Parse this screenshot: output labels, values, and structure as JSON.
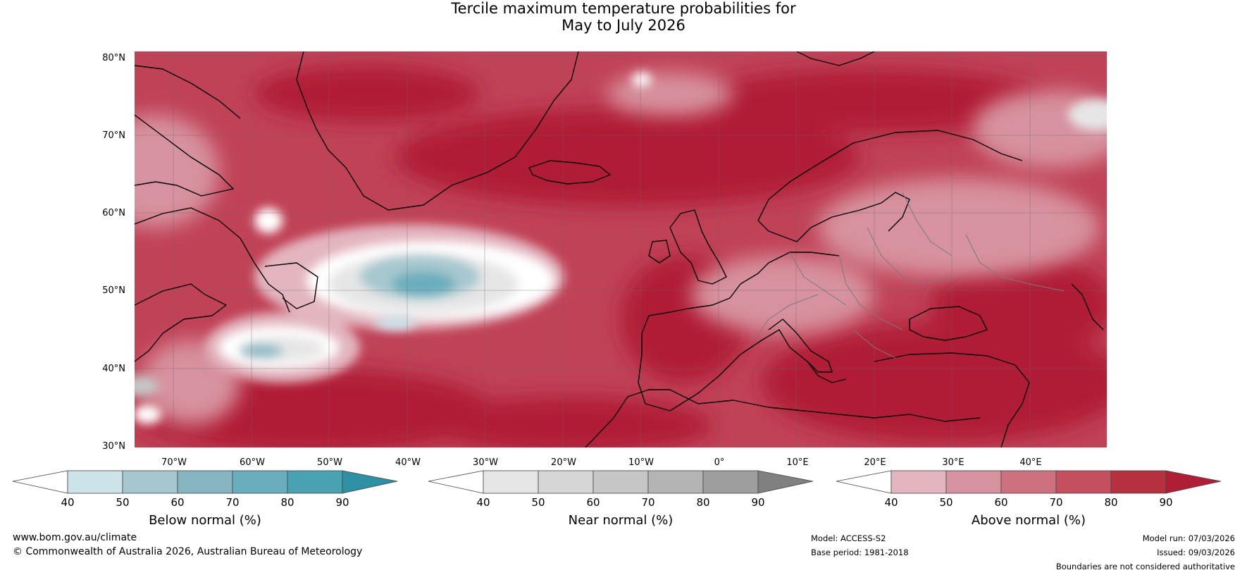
{
  "title": {
    "line1": "Tercile maximum temperature probabilities for",
    "line2": "May to July 2026"
  },
  "map": {
    "lat_labels": [
      "80°N",
      "70°N",
      "60°N",
      "50°N",
      "40°N",
      "30°N"
    ],
    "lon_labels": [
      "70°W",
      "60°W",
      "50°W",
      "40°W",
      "30°W",
      "20°W",
      "10°W",
      "0°",
      "10°E",
      "20°E",
      "30°E",
      "40°E"
    ],
    "lat_range": [
      30,
      80
    ],
    "lon_range": [
      -75,
      50
    ]
  },
  "colorbars": [
    {
      "label": "Below normal (%)",
      "ticks": [
        "40",
        "50",
        "60",
        "70",
        "80",
        "90"
      ],
      "colors": [
        "#cce3ea",
        "#a6c7cf",
        "#87b4c1",
        "#6aaebd",
        "#48a2b1",
        "#2e91a3"
      ],
      "under": "#ffffff"
    },
    {
      "label": "Near normal (%)",
      "ticks": [
        "40",
        "50",
        "60",
        "70",
        "80",
        "90"
      ],
      "colors": [
        "#e6e6e6",
        "#d6d6d6",
        "#c6c6c6",
        "#b4b4b4",
        "#9e9e9e",
        "#808080"
      ],
      "under": "#ffffff"
    },
    {
      "label": "Above normal (%)",
      "ticks": [
        "40",
        "50",
        "60",
        "70",
        "80",
        "90"
      ],
      "colors": [
        "#e3b6bf",
        "#d7929f",
        "#cd717f",
        "#c4505f",
        "#b6303f",
        "#b01e36"
      ],
      "under": "#ffffff"
    }
  ],
  "footer": {
    "website": "www.bom.gov.au/climate",
    "copyright": "© Commonwealth of Australia 2026, Australian Bureau of Meteorology",
    "model": "Model: ACCESS-S2",
    "base_period": "Base period: 1981-2018",
    "model_run": "Model run: 07/03/2026",
    "issued": "Issued: 09/03/2026",
    "disclaimer": "Boundaries are not considered authoritative"
  }
}
